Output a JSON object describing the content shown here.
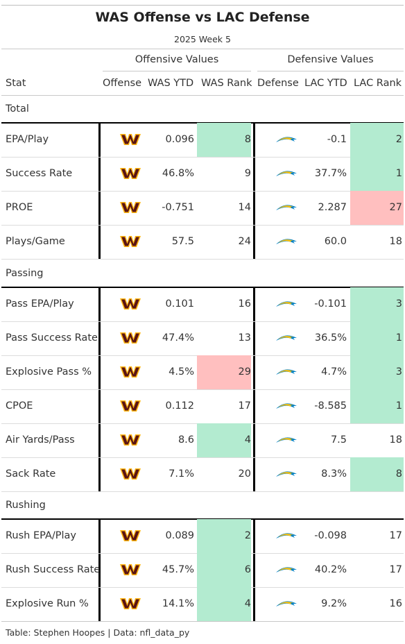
{
  "chart_data": {
    "type": "table",
    "title": "WAS Offense vs LAC Defense",
    "subtitle": "2025 Week 5",
    "spanners": {
      "offense": "Offensive Values",
      "defense": "Defensive Values"
    },
    "columns": [
      "Stat",
      "Offense",
      "WAS YTD",
      "WAS Rank",
      "Defense",
      "LAC YTD",
      "LAC Rank"
    ],
    "groups": [
      {
        "label": "Total",
        "rows": [
          {
            "stat": "EPA/Play",
            "was_ytd": "0.096",
            "was_rank": "8",
            "lac_ytd": "-0.1",
            "lac_rank": "2",
            "was_color": "#b3ebd0",
            "lac_color": "#b3ebd0"
          },
          {
            "stat": "Success Rate",
            "was_ytd": "46.8%",
            "was_rank": "9",
            "lac_ytd": "37.7%",
            "lac_rank": "1",
            "was_color": "",
            "lac_color": "#b3ebd0"
          },
          {
            "stat": "PROE",
            "was_ytd": "-0.751",
            "was_rank": "14",
            "lac_ytd": "2.287",
            "lac_rank": "27",
            "was_color": "",
            "lac_color": "#ffbfbf"
          },
          {
            "stat": "Plays/Game",
            "was_ytd": "57.5",
            "was_rank": "24",
            "lac_ytd": "60.0",
            "lac_rank": "18",
            "was_color": "",
            "lac_color": ""
          }
        ]
      },
      {
        "label": "Passing",
        "rows": [
          {
            "stat": "Pass EPA/Play",
            "was_ytd": "0.101",
            "was_rank": "16",
            "lac_ytd": "-0.101",
            "lac_rank": "3",
            "was_color": "",
            "lac_color": "#b3ebd0"
          },
          {
            "stat": "Pass Success Rate",
            "was_ytd": "47.4%",
            "was_rank": "13",
            "lac_ytd": "36.5%",
            "lac_rank": "1",
            "was_color": "",
            "lac_color": "#b3ebd0"
          },
          {
            "stat": "Explosive Pass %",
            "was_ytd": "4.5%",
            "was_rank": "29",
            "lac_ytd": "4.7%",
            "lac_rank": "3",
            "was_color": "#ffbfbf",
            "lac_color": "#b3ebd0"
          },
          {
            "stat": "CPOE",
            "was_ytd": "0.112",
            "was_rank": "17",
            "lac_ytd": "-8.585",
            "lac_rank": "1",
            "was_color": "",
            "lac_color": "#b3ebd0"
          },
          {
            "stat": "Air Yards/Pass",
            "was_ytd": "8.6",
            "was_rank": "4",
            "lac_ytd": "7.5",
            "lac_rank": "18",
            "was_color": "#b3ebd0",
            "lac_color": ""
          },
          {
            "stat": "Sack Rate",
            "was_ytd": "7.1%",
            "was_rank": "20",
            "lac_ytd": "8.3%",
            "lac_rank": "8",
            "was_color": "",
            "lac_color": "#b3ebd0"
          }
        ]
      },
      {
        "label": "Rushing",
        "rows": [
          {
            "stat": "Rush EPA/Play",
            "was_ytd": "0.089",
            "was_rank": "2",
            "lac_ytd": "-0.098",
            "lac_rank": "17",
            "was_color": "#b3ebd0",
            "lac_color": ""
          },
          {
            "stat": "Rush Success Rate",
            "was_ytd": "45.7%",
            "was_rank": "6",
            "lac_ytd": "40.2%",
            "lac_rank": "17",
            "was_color": "#b3ebd0",
            "lac_color": ""
          },
          {
            "stat": "Explosive Run %",
            "was_ytd": "14.1%",
            "was_rank": "4",
            "lac_ytd": "9.2%",
            "lac_rank": "16",
            "was_color": "#b3ebd0",
            "lac_color": ""
          }
        ]
      }
    ],
    "offense_logo": "washington-commanders-w-logo",
    "defense_logo": "chargers-bolt-logo",
    "colors": {
      "good": "#b3ebd0",
      "bad": "#ffbfbf",
      "was_primary": "#5a1414",
      "was_accent": "#ffb612",
      "lac_primary": "#0080c6",
      "lac_accent": "#ffc20e"
    }
  },
  "footer": "Table: Stephen Hoopes | Data: nfl_data_py"
}
